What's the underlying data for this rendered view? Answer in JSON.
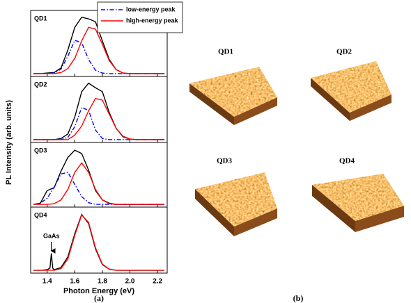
{
  "chart_data": [
    {
      "type": "line",
      "title": "QD1",
      "xlim": [
        1.28,
        2.27
      ],
      "ylim": [
        -0.05,
        1.12
      ],
      "legend": "top-right",
      "x": [
        1.3,
        1.35,
        1.4,
        1.45,
        1.5,
        1.55,
        1.6,
        1.65,
        1.7,
        1.75,
        1.8,
        1.85,
        1.9,
        1.95,
        2.0,
        2.05,
        2.1,
        2.15,
        2.2,
        2.25
      ],
      "series": [
        {
          "color": "#000000",
          "style": "solid",
          "values": [
            0,
            0,
            0.01,
            0.02,
            0.1,
            0.42,
            0.82,
            1.0,
            0.97,
            0.92,
            0.58,
            0.25,
            0.07,
            0.01,
            0,
            0,
            0,
            0,
            0,
            0
          ]
        },
        {
          "name": "low-energy peak",
          "color": "#0000ff",
          "style": "dash-dot",
          "values": [
            0,
            0,
            0,
            0.01,
            0.08,
            0.31,
            0.59,
            0.55,
            0.25,
            0.06,
            0.01,
            0,
            0,
            0,
            0,
            0,
            0,
            0,
            0,
            0
          ]
        },
        {
          "name": "high-energy peak",
          "color": "#ff0000",
          "style": "solid",
          "values": [
            0,
            0,
            0,
            0,
            0.02,
            0.09,
            0.27,
            0.58,
            0.82,
            0.79,
            0.52,
            0.23,
            0.07,
            0.01,
            0,
            0,
            0,
            0,
            0,
            0
          ]
        }
      ]
    },
    {
      "type": "line",
      "title": "QD2",
      "xlim": [
        1.28,
        2.27
      ],
      "ylim": [
        -0.05,
        1.12
      ],
      "x": [
        1.3,
        1.35,
        1.4,
        1.45,
        1.5,
        1.55,
        1.6,
        1.65,
        1.7,
        1.75,
        1.8,
        1.85,
        1.9,
        1.95,
        2.0,
        2.05,
        2.1,
        2.15,
        2.2,
        2.25
      ],
      "series": [
        {
          "color": "#000000",
          "style": "solid",
          "values": [
            0,
            0,
            0,
            0,
            0.02,
            0.1,
            0.4,
            0.85,
            1.0,
            0.92,
            0.85,
            0.48,
            0.2,
            0.05,
            0.01,
            0,
            0,
            0,
            0,
            0
          ]
        },
        {
          "color": "#0000ff",
          "style": "dash-dot",
          "values": [
            0,
            0,
            0,
            0,
            0,
            0.04,
            0.23,
            0.57,
            0.52,
            0.17,
            0.02,
            0,
            0,
            0,
            0,
            0,
            0,
            0,
            0,
            0
          ]
        },
        {
          "color": "#ff0000",
          "style": "solid",
          "values": [
            0,
            0,
            0,
            0,
            0,
            0,
            0.08,
            0.24,
            0.51,
            0.73,
            0.7,
            0.45,
            0.2,
            0.06,
            0.01,
            0,
            0,
            0,
            0,
            0
          ]
        }
      ]
    },
    {
      "type": "line",
      "title": "QD3",
      "xlim": [
        1.28,
        2.27
      ],
      "ylim": [
        -0.05,
        1.12
      ],
      "x": [
        1.3,
        1.35,
        1.4,
        1.45,
        1.5,
        1.55,
        1.6,
        1.65,
        1.7,
        1.75,
        1.8,
        1.85,
        1.9,
        1.95,
        2.0,
        2.05,
        2.1,
        2.15,
        2.2,
        2.25
      ],
      "series": [
        {
          "color": "#000000",
          "style": "solid",
          "values": [
            0,
            0.02,
            0.25,
            0.3,
            0.6,
            0.85,
            0.98,
            0.92,
            0.62,
            0.25,
            0.08,
            0.02,
            0,
            0,
            0,
            0,
            0,
            0,
            0,
            0
          ]
        },
        {
          "color": "#0000ff",
          "style": "dash-dot",
          "values": [
            0,
            0.02,
            0.11,
            0.31,
            0.55,
            0.58,
            0.36,
            0.14,
            0.03,
            0,
            0,
            0,
            0,
            0,
            0,
            0,
            0,
            0,
            0,
            0
          ]
        },
        {
          "color": "#ff0000",
          "style": "solid",
          "values": [
            0,
            0,
            0,
            0.01,
            0.08,
            0.27,
            0.58,
            0.75,
            0.58,
            0.27,
            0.08,
            0.01,
            0,
            0,
            0,
            0,
            0,
            0,
            0,
            0
          ]
        }
      ]
    },
    {
      "type": "line",
      "title": "QD4",
      "xlim": [
        1.28,
        2.27
      ],
      "ylim": [
        -0.05,
        1.12
      ],
      "xlabel": "Photon Energy (eV)",
      "xticks": [
        {
          "value": 1.4,
          "label": "1.4"
        },
        {
          "value": 1.6,
          "label": "1.6"
        },
        {
          "value": 1.8,
          "label": "1.8"
        },
        {
          "value": 2.0,
          "label": "2.0"
        },
        {
          "value": 2.2,
          "label": "2.2"
        }
      ],
      "annotation": {
        "text": "GaAs",
        "x": 1.43
      },
      "x": [
        1.3,
        1.35,
        1.4,
        1.42,
        1.43,
        1.44,
        1.45,
        1.5,
        1.55,
        1.6,
        1.65,
        1.7,
        1.75,
        1.8,
        1.85,
        1.9,
        1.95,
        2.0,
        2.05,
        2.1,
        2.15,
        2.2,
        2.25
      ],
      "series": [
        {
          "color": "#000000",
          "style": "solid",
          "values": [
            0,
            0,
            0.01,
            0.04,
            0.3,
            0.04,
            0.01,
            0.05,
            0.24,
            0.65,
            0.99,
            0.83,
            0.38,
            0.1,
            0.02,
            0,
            0,
            0,
            0,
            0,
            0,
            0,
            0
          ]
        },
        {
          "color": "#ff0000",
          "style": "solid",
          "values": [
            0,
            0,
            0,
            0,
            0,
            0,
            0,
            0.03,
            0.2,
            0.62,
            0.98,
            0.85,
            0.4,
            0.11,
            0.02,
            0,
            0,
            0,
            0,
            0,
            0,
            0,
            0
          ]
        }
      ]
    }
  ],
  "figure": {
    "ylabel": "PL Intensity (arb. units)",
    "panel_a": "(a)",
    "panel_b": "(b)"
  },
  "afm": {
    "labels": [
      "QD1",
      "QD2",
      "QD3",
      "QD4"
    ]
  }
}
